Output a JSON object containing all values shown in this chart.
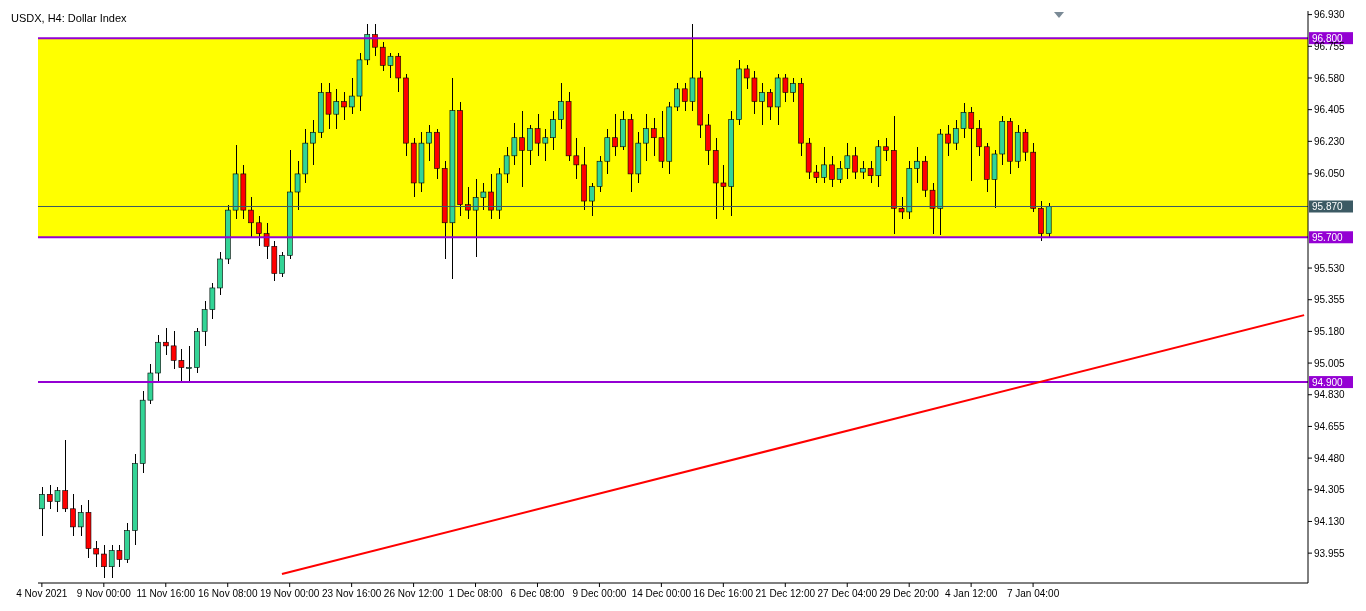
{
  "chart_data": {
    "type": "candlestick",
    "title": "USDX, H4:  Dollar Index",
    "categories": [
      "4 Nov 2021",
      null,
      null,
      null,
      null,
      null,
      null,
      null,
      "9 Nov 00:00",
      null,
      null,
      null,
      null,
      null,
      null,
      null,
      "11 Nov 16:00",
      null,
      null,
      null,
      null,
      null,
      null,
      null,
      "16 Nov 08:00",
      null,
      null,
      null,
      null,
      null,
      null,
      null,
      "19 Nov 00:00",
      null,
      null,
      null,
      null,
      null,
      null,
      null,
      "23 Nov 16:00",
      null,
      null,
      null,
      null,
      null,
      null,
      null,
      "26 Nov 12:00",
      null,
      null,
      null,
      null,
      null,
      null,
      null,
      "1 Dec 08:00",
      null,
      null,
      null,
      null,
      null,
      null,
      null,
      "6 Dec 08:00",
      null,
      null,
      null,
      null,
      null,
      null,
      null,
      "9 Dec 00:00",
      null,
      null,
      null,
      null,
      null,
      null,
      null,
      "14 Dec 00:00",
      null,
      null,
      null,
      null,
      null,
      null,
      null,
      "16 Dec 16:00",
      null,
      null,
      null,
      null,
      null,
      null,
      null,
      "21 Dec 12:00",
      null,
      null,
      null,
      null,
      null,
      null,
      null,
      "27 Dec 04:00",
      null,
      null,
      null,
      null,
      null,
      null,
      null,
      "29 Dec 20:00",
      null,
      null,
      null,
      null,
      null,
      null,
      null,
      "4 Jan 12:00",
      null,
      null,
      null,
      null,
      null,
      null,
      null,
      "7 Jan 04:00",
      null,
      null,
      null,
      null,
      null,
      null,
      null,
      null,
      null,
      null,
      null,
      null,
      null,
      null,
      null,
      null,
      null,
      null,
      null,
      null,
      null,
      null,
      null,
      null,
      null,
      null,
      null,
      null,
      null,
      null,
      null,
      null,
      null,
      null,
      null
    ],
    "ohlc": [
      [
        94.2,
        94.32,
        94.05,
        94.28
      ],
      [
        94.28,
        94.33,
        94.2,
        94.24
      ],
      [
        94.24,
        94.32,
        94.18,
        94.3
      ],
      [
        94.3,
        94.58,
        94.18,
        94.2
      ],
      [
        94.2,
        94.28,
        94.05,
        94.1
      ],
      [
        94.1,
        94.22,
        94.05,
        94.18
      ],
      [
        94.18,
        94.25,
        93.93,
        93.98
      ],
      [
        93.98,
        94.02,
        93.88,
        93.95
      ],
      [
        93.95,
        94.0,
        93.82,
        93.88
      ],
      [
        93.88,
        94.0,
        93.82,
        93.97
      ],
      [
        93.97,
        94.0,
        93.88,
        93.92
      ],
      [
        93.92,
        94.12,
        93.9,
        94.08
      ],
      [
        94.08,
        94.5,
        94.0,
        94.45
      ],
      [
        94.45,
        94.85,
        94.4,
        94.8
      ],
      [
        94.8,
        95.0,
        94.78,
        94.95
      ],
      [
        94.95,
        95.16,
        94.9,
        95.12
      ],
      [
        95.12,
        95.2,
        95.05,
        95.1
      ],
      [
        95.1,
        95.18,
        94.97,
        95.02
      ],
      [
        95.02,
        95.08,
        94.9,
        94.98
      ],
      [
        94.98,
        95.1,
        94.9,
        94.98
      ],
      [
        94.98,
        95.2,
        94.95,
        95.18
      ],
      [
        95.18,
        95.35,
        95.1,
        95.3
      ],
      [
        95.3,
        95.45,
        95.25,
        95.42
      ],
      [
        95.42,
        95.62,
        95.38,
        95.58
      ],
      [
        95.58,
        95.88,
        95.55,
        95.85
      ],
      [
        95.85,
        96.21,
        95.8,
        96.05
      ],
      [
        96.05,
        96.1,
        95.8,
        95.85
      ],
      [
        95.85,
        95.92,
        95.7,
        95.78
      ],
      [
        95.78,
        95.82,
        95.65,
        95.72
      ],
      [
        95.72,
        95.78,
        95.58,
        95.65
      ],
      [
        95.65,
        95.68,
        95.46,
        95.5
      ],
      [
        95.5,
        95.62,
        95.48,
        95.6
      ],
      [
        95.6,
        96.18,
        95.58,
        95.95
      ],
      [
        95.95,
        96.12,
        95.85,
        96.05
      ],
      [
        96.05,
        96.3,
        96.0,
        96.22
      ],
      [
        96.22,
        96.35,
        96.1,
        96.28
      ],
      [
        96.28,
        96.55,
        96.25,
        96.5
      ],
      [
        96.5,
        96.55,
        96.3,
        96.38
      ],
      [
        96.38,
        96.52,
        96.3,
        96.45
      ],
      [
        96.45,
        96.5,
        96.35,
        96.42
      ],
      [
        96.42,
        96.58,
        96.38,
        96.48
      ],
      [
        96.48,
        96.72,
        96.4,
        96.68
      ],
      [
        96.68,
        96.88,
        96.65,
        96.82
      ],
      [
        96.82,
        96.88,
        96.7,
        96.75
      ],
      [
        96.75,
        96.78,
        96.62,
        96.65
      ],
      [
        96.65,
        96.72,
        96.58,
        96.7
      ],
      [
        96.7,
        96.72,
        96.5,
        96.58
      ],
      [
        96.58,
        96.6,
        96.15,
        96.22
      ],
      [
        96.22,
        96.25,
        95.92,
        96.0
      ],
      [
        96.0,
        96.28,
        95.95,
        96.22
      ],
      [
        96.22,
        96.32,
        96.12,
        96.28
      ],
      [
        96.28,
        96.3,
        96.02,
        96.08
      ],
      [
        96.08,
        96.12,
        95.58,
        95.78
      ],
      [
        95.78,
        96.58,
        95.47,
        96.4
      ],
      [
        96.4,
        96.45,
        95.82,
        95.88
      ],
      [
        95.88,
        95.98,
        95.8,
        95.85
      ],
      [
        95.85,
        96.02,
        95.59,
        95.92
      ],
      [
        95.92,
        96.0,
        95.85,
        95.95
      ],
      [
        95.95,
        96.05,
        95.8,
        95.85
      ],
      [
        95.85,
        96.08,
        95.8,
        96.05
      ],
      [
        96.05,
        96.2,
        96.0,
        96.15
      ],
      [
        96.15,
        96.33,
        96.1,
        96.25
      ],
      [
        96.25,
        96.4,
        95.98,
        96.18
      ],
      [
        96.18,
        96.32,
        96.1,
        96.3
      ],
      [
        96.3,
        96.38,
        96.15,
        96.22
      ],
      [
        96.22,
        96.3,
        96.12,
        96.25
      ],
      [
        96.25,
        96.4,
        96.18,
        96.35
      ],
      [
        96.35,
        96.55,
        96.3,
        96.45
      ],
      [
        96.45,
        96.5,
        96.12,
        96.15
      ],
      [
        96.15,
        96.25,
        96.02,
        96.1
      ],
      [
        96.1,
        96.2,
        95.85,
        95.9
      ],
      [
        95.9,
        96.0,
        95.82,
        95.98
      ],
      [
        95.98,
        96.15,
        95.95,
        96.12
      ],
      [
        96.12,
        96.3,
        96.05,
        96.25
      ],
      [
        96.25,
        96.38,
        96.15,
        96.2
      ],
      [
        96.2,
        96.4,
        96.18,
        96.35
      ],
      [
        96.35,
        96.38,
        95.95,
        96.05
      ],
      [
        96.05,
        96.28,
        96.0,
        96.22
      ],
      [
        96.22,
        96.38,
        96.12,
        96.3
      ],
      [
        96.3,
        96.36,
        96.15,
        96.25
      ],
      [
        96.25,
        96.4,
        96.08,
        96.12
      ],
      [
        96.12,
        96.45,
        96.05,
        96.42
      ],
      [
        96.42,
        96.55,
        96.4,
        96.52
      ],
      [
        96.52,
        96.55,
        96.4,
        96.45
      ],
      [
        96.45,
        96.88,
        96.4,
        96.58
      ],
      [
        96.58,
        96.62,
        96.25,
        96.32
      ],
      [
        96.32,
        96.38,
        96.1,
        96.18
      ],
      [
        96.18,
        96.25,
        95.8,
        96.0
      ],
      [
        96.0,
        96.1,
        95.85,
        95.98
      ],
      [
        95.98,
        96.4,
        95.82,
        96.35
      ],
      [
        96.35,
        96.68,
        96.32,
        96.63
      ],
      [
        96.63,
        96.65,
        96.52,
        96.58
      ],
      [
        96.58,
        96.62,
        96.38,
        96.45
      ],
      [
        96.45,
        96.55,
        96.32,
        96.5
      ],
      [
        96.5,
        96.52,
        96.35,
        96.42
      ],
      [
        96.42,
        96.6,
        96.32,
        96.58
      ],
      [
        96.58,
        96.6,
        96.45,
        96.5
      ],
      [
        96.5,
        96.58,
        96.45,
        96.55
      ],
      [
        96.55,
        96.58,
        96.15,
        96.22
      ],
      [
        96.22,
        96.25,
        96.02,
        96.06
      ],
      [
        96.06,
        96.1,
        96.0,
        96.03
      ],
      [
        96.03,
        96.2,
        96.0,
        96.1
      ],
      [
        96.1,
        96.15,
        95.98,
        96.02
      ],
      [
        96.02,
        96.12,
        96.0,
        96.08
      ],
      [
        96.08,
        96.22,
        96.02,
        96.15
      ],
      [
        96.15,
        96.2,
        96.02,
        96.06
      ],
      [
        96.06,
        96.12,
        96.02,
        96.08
      ],
      [
        96.08,
        96.12,
        96.0,
        96.04
      ],
      [
        96.04,
        96.24,
        95.98,
        96.2
      ],
      [
        96.2,
        96.25,
        96.12,
        96.18
      ],
      [
        96.18,
        96.37,
        95.72,
        95.86
      ],
      [
        95.86,
        95.92,
        95.8,
        95.84
      ],
      [
        95.84,
        96.12,
        95.8,
        96.08
      ],
      [
        96.08,
        96.2,
        96.0,
        96.12
      ],
      [
        96.12,
        96.15,
        95.92,
        95.96
      ],
      [
        95.96,
        96.0,
        95.72,
        95.86
      ],
      [
        95.86,
        96.3,
        95.71,
        96.27
      ],
      [
        96.27,
        96.32,
        96.15,
        96.22
      ],
      [
        96.22,
        96.35,
        96.18,
        96.3
      ],
      [
        96.3,
        96.44,
        96.25,
        96.39
      ],
      [
        96.39,
        96.42,
        96.01,
        96.3
      ],
      [
        96.3,
        96.35,
        96.15,
        96.2
      ],
      [
        96.2,
        96.22,
        95.95,
        96.02
      ],
      [
        96.02,
        96.18,
        95.86,
        96.16
      ],
      [
        96.16,
        96.37,
        96.1,
        96.34
      ],
      [
        96.34,
        96.36,
        96.05,
        96.12
      ],
      [
        96.12,
        96.32,
        96.08,
        96.28
      ],
      [
        96.28,
        96.3,
        96.12,
        96.17
      ],
      [
        96.17,
        96.22,
        95.84,
        95.86
      ],
      [
        95.86,
        95.9,
        95.68,
        95.72
      ],
      [
        95.72,
        95.89,
        95.7,
        95.87
      ],
      null,
      null,
      null,
      null,
      null,
      null,
      null,
      null,
      null,
      null,
      null,
      null,
      null,
      null,
      null,
      null,
      null,
      null,
      null,
      null,
      null,
      null,
      null,
      null,
      null,
      null,
      null,
      null,
      null,
      null,
      null,
      null,
      null
    ],
    "colors": [
      "#33d496",
      "#ff0000",
      "#33d496",
      "#ff0000",
      "#ff0000",
      "#33d496",
      "#ff0000",
      "#ff0000",
      "#ff0000",
      "#33d496",
      "#ff0000",
      "#33d496",
      "#33d496",
      "#33d496",
      "#33d496",
      "#33d496",
      "#ff0000",
      "#ff0000",
      "#ff0000",
      "#33d496",
      "#33d496",
      "#33d496",
      "#33d496",
      "#33d496",
      "#33d496",
      "#33d496",
      "#ff0000",
      "#ff0000",
      "#ff0000",
      "#ff0000",
      "#ff0000",
      "#33d496",
      "#33d496",
      "#33d496",
      "#33d496",
      "#33d496",
      "#33d496",
      "#ff0000",
      "#33d496",
      "#ff0000",
      "#33d496",
      "#33d496",
      "#33d496",
      "#ff0000",
      "#ff0000",
      "#33d496",
      "#ff0000",
      "#ff0000",
      "#ff0000",
      "#33d496",
      "#33d496",
      "#ff0000",
      "#ff0000",
      "#33d496",
      "#ff0000",
      "#ff0000",
      "#33d496",
      "#33d496",
      "#ff0000",
      "#33d496",
      "#33d496",
      "#33d496",
      "#ff0000",
      "#33d496",
      "#ff0000",
      "#33d496",
      "#33d496",
      "#33d496",
      "#ff0000",
      "#ff0000",
      "#ff0000",
      "#33d496",
      "#33d496",
      "#33d496",
      "#ff0000",
      "#33d496",
      "#ff0000",
      "#33d496",
      "#33d496",
      "#ff0000",
      "#ff0000",
      "#33d496",
      "#33d496",
      "#ff0000",
      "#33d496",
      "#ff0000",
      "#ff0000",
      "#ff0000",
      "#ff0000",
      "#33d496",
      "#33d496",
      "#ff0000",
      "#ff0000",
      "#33d496",
      "#ff0000",
      "#33d496",
      "#ff0000",
      "#33d496",
      "#ff0000",
      "#ff0000",
      "#ff0000",
      "#33d496",
      "#ff0000",
      "#33d496",
      "#33d496",
      "#ff0000",
      "#33d496",
      "#ff0000",
      "#33d496",
      "#ff0000",
      "#ff0000",
      "#ff0000",
      "#33d496",
      "#33d496",
      "#ff0000",
      "#ff0000",
      "#33d496",
      "#ff0000",
      "#33d496",
      "#33d496",
      "#ff0000",
      "#ff0000",
      "#ff0000",
      "#33d496",
      "#33d496",
      "#ff0000",
      "#33d496",
      "#ff0000",
      "#ff0000",
      "#ff0000",
      "#33d496",
      null,
      null,
      null,
      null,
      null,
      null,
      null,
      null,
      null,
      null,
      null,
      null,
      null,
      null,
      null,
      null,
      null,
      null,
      null,
      null,
      null,
      null,
      null,
      null,
      null,
      null,
      null,
      null,
      null,
      null,
      null,
      null,
      null
    ],
    "series": [
      {
        "type": "line",
        "color": "#ff0000",
        "values": [
          null,
          null,
          null,
          null,
          null,
          null,
          null,
          null,
          null,
          null,
          null,
          null,
          null,
          null,
          null,
          null,
          null,
          null,
          null,
          null,
          null,
          null,
          null,
          null,
          null,
          null,
          null,
          null,
          null,
          null,
          null,
          93.84,
          null,
          null,
          null,
          null,
          null,
          null,
          null,
          null,
          null,
          null,
          null,
          null,
          null,
          null,
          null,
          null,
          null,
          null,
          null,
          null,
          null,
          null,
          null,
          null,
          null,
          null,
          null,
          null,
          null,
          null,
          null,
          null,
          null,
          null,
          null,
          null,
          null,
          null,
          null,
          null,
          null,
          null,
          null,
          null,
          null,
          null,
          null,
          null,
          null,
          null,
          null,
          null,
          null,
          null,
          null,
          null,
          null,
          null,
          null,
          null,
          null,
          null,
          null,
          null,
          null,
          null,
          null,
          null,
          null,
          null,
          null,
          null,
          null,
          null,
          null,
          null,
          null,
          null,
          null,
          null,
          null,
          null,
          null,
          null,
          null,
          null,
          null,
          null,
          null,
          null,
          null,
          null,
          null,
          null,
          null,
          null,
          null,
          null,
          null,
          null,
          null,
          null,
          null,
          null,
          null,
          null,
          null,
          null,
          null,
          null,
          null,
          null,
          null,
          null,
          null,
          null,
          null,
          null,
          null,
          null,
          null,
          null,
          null,
          null,
          null,
          null,
          null,
          null,
          null,
          null,
          null,
          95.27
        ]
      }
    ],
    "ylim": [
      93.79,
      96.95
    ],
    "yticks": [
      {
        "value": 93.955,
        "label": "93.955"
      },
      {
        "value": 94.13,
        "label": "94.130"
      },
      {
        "value": 94.305,
        "label": "94.305"
      },
      {
        "value": 94.48,
        "label": "94.480"
      },
      {
        "value": 94.655,
        "label": "94.655"
      },
      {
        "value": 94.83,
        "label": "94.830"
      },
      {
        "value": 95.005,
        "label": "95.005"
      },
      {
        "value": 95.18,
        "label": "95.180"
      },
      {
        "value": 95.355,
        "label": "95.355"
      },
      {
        "value": 95.53,
        "label": "95.530"
      },
      {
        "value": 96.05,
        "label": "96.050"
      },
      {
        "value": 96.23,
        "label": "96.230"
      },
      {
        "value": 96.405,
        "label": "96.405"
      },
      {
        "value": 96.58,
        "label": "96.580"
      },
      {
        "value": 96.755,
        "label": "96.755"
      },
      {
        "value": 96.93,
        "label": "96.930"
      }
    ],
    "ref_lines": [
      {
        "axis": "y",
        "value": 96.8,
        "label": "96.800",
        "color": "#9400d3"
      },
      {
        "axis": "y",
        "value": 95.7,
        "label": "95.700",
        "color": "#9400d3"
      },
      {
        "axis": "y",
        "value": 94.9,
        "label": "94.900",
        "color": "#9400d3"
      },
      {
        "axis": "y",
        "value": 95.87,
        "label": "95.870",
        "color": "#3c5a64"
      }
    ],
    "bands": [
      {
        "axis": "y",
        "from": 95.7,
        "to": 96.8,
        "color": "#ffff00"
      }
    ],
    "grid": false,
    "legend": false
  }
}
